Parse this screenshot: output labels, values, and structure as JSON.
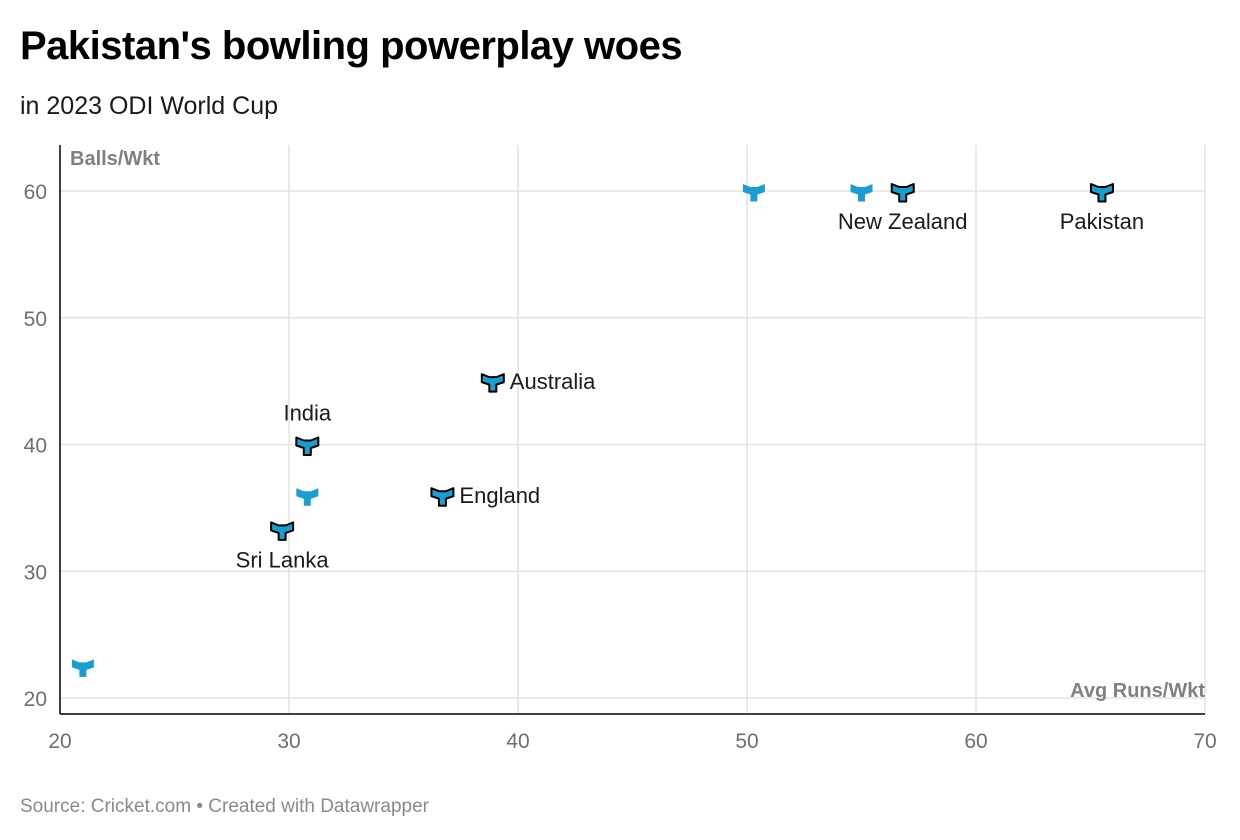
{
  "title": "Pakistan's bowling powerplay woes",
  "subtitle": "in 2023 ODI World Cup",
  "footer": {
    "source": "Source: Cricket.com",
    "separator": "•",
    "credit": "Created with Datawrapper"
  },
  "colors": {
    "marker_fill": "#1a9ecf",
    "marker_stroke": "#000000",
    "grid": "#e3e3e3",
    "axis": "#000000"
  },
  "icons": {
    "marker": "three-way-arrow-icon"
  },
  "chart_data": {
    "type": "scatter",
    "title": "Pakistan's bowling powerplay woes",
    "subtitle": "in 2023 ODI World Cup",
    "xlabel": "Avg Runs/Wkt",
    "ylabel": "Balls/Wkt",
    "xlim": [
      20,
      70
    ],
    "ylim": [
      20,
      64
    ],
    "x_ticks": [
      20,
      30,
      40,
      50,
      60,
      70
    ],
    "y_ticks": [
      20,
      30,
      40,
      50,
      60
    ],
    "grid": true,
    "points": [
      {
        "name": "Pakistan",
        "x": 65.5,
        "y": 60,
        "highlight": true,
        "label_pos": "below"
      },
      {
        "name": "New Zealand",
        "x": 56.8,
        "y": 60,
        "highlight": true,
        "label_pos": "below"
      },
      {
        "name": "",
        "x": 55.0,
        "y": 60,
        "highlight": false
      },
      {
        "name": "",
        "x": 50.3,
        "y": 60,
        "highlight": false
      },
      {
        "name": "Australia",
        "x": 38.9,
        "y": 45,
        "highlight": true,
        "label_pos": "right"
      },
      {
        "name": "India",
        "x": 30.8,
        "y": 40,
        "highlight": true,
        "label_pos": "above"
      },
      {
        "name": "",
        "x": 30.8,
        "y": 36,
        "highlight": false
      },
      {
        "name": "England",
        "x": 36.7,
        "y": 36,
        "highlight": true,
        "label_pos": "right"
      },
      {
        "name": "Sri Lanka",
        "x": 29.7,
        "y": 33.3,
        "highlight": true,
        "label_pos": "below"
      },
      {
        "name": "",
        "x": 21.0,
        "y": 22.5,
        "highlight": false
      }
    ]
  }
}
